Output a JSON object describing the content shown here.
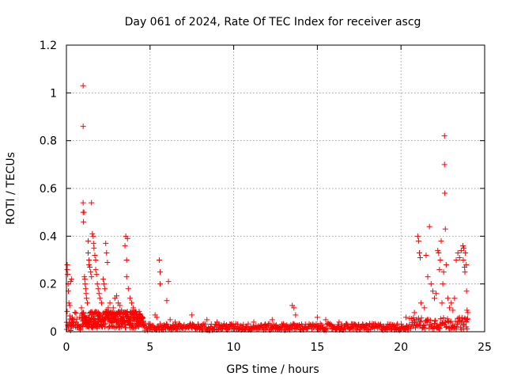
{
  "chart_data": {
    "type": "scatter",
    "title": "Day 061 of 2024, Rate Of TEC Index for receiver ascg",
    "xlabel": "GPS time / hours",
    "ylabel": "ROTI / TECUs",
    "xlim": [
      0,
      25
    ],
    "ylim": [
      0,
      1.2
    ],
    "xticks": [
      0,
      5,
      10,
      15,
      20,
      25
    ],
    "xtick_labels": [
      "0",
      "5",
      "10",
      "15",
      "20",
      "25"
    ],
    "yticks": [
      0,
      0.2,
      0.4,
      0.6,
      0.8,
      1.0,
      1.2
    ],
    "ytick_labels": [
      "0",
      "0.2",
      "0.4",
      "0.6",
      "0.8",
      "1",
      "1.2"
    ],
    "grid": true,
    "marker": "+",
    "color": "#ff0000",
    "series": [
      {
        "name": "ROTI",
        "points": [
          [
            0.05,
            0.28
          ],
          [
            0.05,
            0.26
          ],
          [
            0.08,
            0.24
          ],
          [
            0.1,
            0.2
          ],
          [
            0.12,
            0.17
          ],
          [
            0.15,
            0.12
          ],
          [
            0.2,
            0.11
          ],
          [
            0.25,
            0.21
          ],
          [
            0.3,
            0.22
          ],
          [
            0.35,
            0.06
          ],
          [
            0.4,
            0.05
          ],
          [
            0.1,
            0.02
          ],
          [
            0.2,
            0.03
          ],
          [
            0.3,
            0.02
          ],
          [
            0.45,
            0.03
          ],
          [
            0.55,
            0.02
          ],
          [
            0.6,
            0.04
          ],
          [
            0.7,
            0.03
          ],
          [
            0.8,
            0.06
          ],
          [
            0.9,
            0.1
          ],
          [
            1.0,
            1.03
          ],
          [
            1.0,
            0.86
          ],
          [
            1.0,
            0.54
          ],
          [
            1.0,
            0.5
          ],
          [
            1.02,
            0.46
          ],
          [
            1.05,
            0.5
          ],
          [
            1.08,
            0.23
          ],
          [
            1.1,
            0.22
          ],
          [
            1.12,
            0.2
          ],
          [
            1.15,
            0.18
          ],
          [
            1.18,
            0.16
          ],
          [
            1.2,
            0.14
          ],
          [
            1.25,
            0.12
          ],
          [
            1.3,
            0.38
          ],
          [
            1.3,
            0.33
          ],
          [
            1.35,
            0.3
          ],
          [
            1.35,
            0.28
          ],
          [
            1.4,
            0.27
          ],
          [
            1.45,
            0.25
          ],
          [
            1.5,
            0.23
          ],
          [
            1.5,
            0.54
          ],
          [
            1.55,
            0.41
          ],
          [
            1.6,
            0.4
          ],
          [
            1.62,
            0.37
          ],
          [
            1.65,
            0.35
          ],
          [
            1.7,
            0.32
          ],
          [
            1.75,
            0.3
          ],
          [
            1.75,
            0.26
          ],
          [
            1.8,
            0.24
          ],
          [
            1.85,
            0.2
          ],
          [
            1.9,
            0.18
          ],
          [
            1.95,
            0.16
          ],
          [
            2.0,
            0.14
          ],
          [
            2.1,
            0.12
          ],
          [
            2.2,
            0.22
          ],
          [
            2.25,
            0.2
          ],
          [
            2.3,
            0.18
          ],
          [
            2.35,
            0.37
          ],
          [
            2.4,
            0.33
          ],
          [
            2.45,
            0.29
          ],
          [
            2.5,
            0.1
          ],
          [
            2.6,
            0.12
          ],
          [
            2.7,
            0.08
          ],
          [
            2.8,
            0.1
          ],
          [
            2.9,
            0.14
          ],
          [
            3.0,
            0.15
          ],
          [
            3.1,
            0.12
          ],
          [
            3.2,
            0.11
          ],
          [
            3.3,
            0.09
          ],
          [
            3.4,
            0.08
          ],
          [
            3.5,
            0.36
          ],
          [
            3.55,
            0.4
          ],
          [
            3.6,
            0.3
          ],
          [
            3.6,
            0.23
          ],
          [
            3.65,
            0.39
          ],
          [
            3.7,
            0.18
          ],
          [
            3.8,
            0.14
          ],
          [
            3.9,
            0.12
          ],
          [
            4.0,
            0.1
          ],
          [
            4.1,
            0.08
          ],
          [
            4.2,
            0.07
          ],
          [
            4.3,
            0.05
          ],
          [
            4.5,
            0.06
          ],
          [
            5.3,
            0.07
          ],
          [
            5.4,
            0.06
          ],
          [
            5.55,
            0.3
          ],
          [
            5.6,
            0.25
          ],
          [
            5.6,
            0.2
          ],
          [
            6.0,
            0.13
          ],
          [
            6.1,
            0.21
          ],
          [
            6.2,
            0.05
          ],
          [
            6.5,
            0.04
          ],
          [
            7.5,
            0.07
          ],
          [
            8.4,
            0.05
          ],
          [
            9.0,
            0.04
          ],
          [
            11.2,
            0.04
          ],
          [
            11.9,
            0.03
          ],
          [
            12.3,
            0.05
          ],
          [
            13.5,
            0.11
          ],
          [
            13.6,
            0.1
          ],
          [
            13.7,
            0.07
          ],
          [
            15.0,
            0.06
          ],
          [
            15.5,
            0.05
          ],
          [
            16.3,
            0.04
          ],
          [
            20.3,
            0.06
          ],
          [
            20.8,
            0.08
          ],
          [
            21.0,
            0.4
          ],
          [
            21.05,
            0.38
          ],
          [
            21.1,
            0.33
          ],
          [
            21.15,
            0.31
          ],
          [
            21.2,
            0.12
          ],
          [
            21.4,
            0.1
          ],
          [
            21.5,
            0.32
          ],
          [
            21.6,
            0.23
          ],
          [
            21.7,
            0.44
          ],
          [
            21.8,
            0.2
          ],
          [
            21.9,
            0.17
          ],
          [
            22.0,
            0.14
          ],
          [
            22.1,
            0.16
          ],
          [
            22.2,
            0.34
          ],
          [
            22.25,
            0.33
          ],
          [
            22.3,
            0.26
          ],
          [
            22.35,
            0.3
          ],
          [
            22.4,
            0.38
          ],
          [
            22.45,
            0.12
          ],
          [
            22.5,
            0.2
          ],
          [
            22.55,
            0.25
          ],
          [
            22.6,
            0.82
          ],
          [
            22.6,
            0.7
          ],
          [
            22.62,
            0.58
          ],
          [
            22.65,
            0.43
          ],
          [
            22.7,
            0.28
          ],
          [
            22.8,
            0.14
          ],
          [
            22.9,
            0.1
          ],
          [
            23.0,
            0.12
          ],
          [
            23.1,
            0.09
          ],
          [
            23.2,
            0.14
          ],
          [
            23.3,
            0.3
          ],
          [
            23.4,
            0.33
          ],
          [
            23.5,
            0.31
          ],
          [
            23.6,
            0.34
          ],
          [
            23.7,
            0.36
          ],
          [
            23.72,
            0.3
          ],
          [
            23.75,
            0.35
          ],
          [
            23.8,
            0.27
          ],
          [
            23.82,
            0.25
          ],
          [
            23.85,
            0.33
          ],
          [
            23.9,
            0.28
          ],
          [
            23.92,
            0.17
          ],
          [
            23.95,
            0.09
          ],
          [
            23.97,
            0.05
          ],
          [
            24.0,
            0.08
          ],
          [
            0.02,
            0.01
          ],
          [
            0.15,
            0.01
          ],
          [
            0.25,
            0.005
          ],
          [
            23.6,
            0.01
          ],
          [
            23.9,
            0.02
          ]
        ]
      }
    ]
  }
}
